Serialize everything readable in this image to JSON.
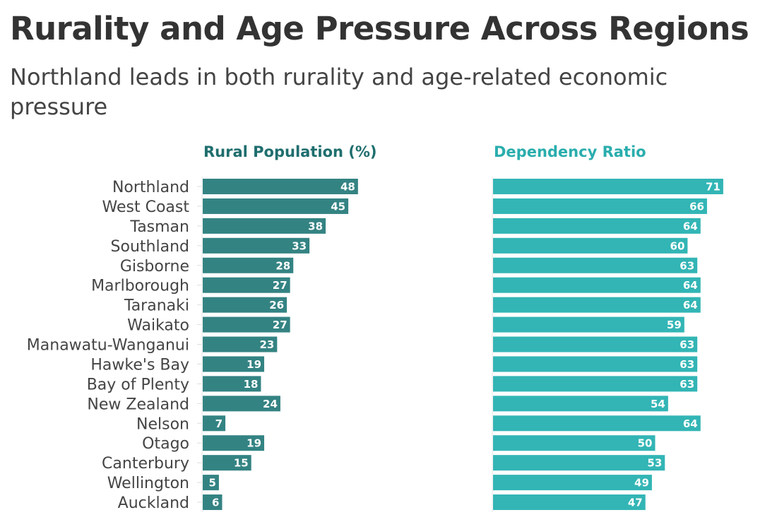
{
  "title": "Rurality and Age Pressure Across Regions",
  "subtitle": "Northland leads in both rurality and age-related economic pressure",
  "chart_data": [
    {
      "type": "bar",
      "orientation": "horizontal",
      "title": "Rural Population (%)",
      "color": "#348383",
      "title_color": "#1f6e6e",
      "categories": [
        "Northland",
        "West Coast",
        "Tasman",
        "Southland",
        "Gisborne",
        "Marlborough",
        "Taranaki",
        "Waikato",
        "Manawatu-Wanganui",
        "Hawke's Bay",
        "Bay of Plenty",
        "New Zealand",
        "Nelson",
        "Otago",
        "Canterbury",
        "Wellington",
        "Auckland"
      ],
      "values": [
        48,
        45,
        38,
        33,
        28,
        27,
        26,
        27,
        23,
        19,
        18,
        24,
        7,
        19,
        15,
        5,
        6
      ],
      "data_labels": true,
      "grid": false
    },
    {
      "type": "bar",
      "orientation": "horizontal",
      "title": "Dependency Ratio",
      "color": "#33b5b5",
      "title_color": "#2aadad",
      "categories": [
        "Northland",
        "West Coast",
        "Tasman",
        "Southland",
        "Gisborne",
        "Marlborough",
        "Taranaki",
        "Waikato",
        "Manawatu-Wanganui",
        "Hawke's Bay",
        "Bay of Plenty",
        "New Zealand",
        "Nelson",
        "Otago",
        "Canterbury",
        "Wellington",
        "Auckland"
      ],
      "values": [
        71,
        66,
        64,
        60,
        63,
        64,
        64,
        59,
        63,
        63,
        63,
        54,
        64,
        50,
        53,
        49,
        47
      ],
      "data_labels": true,
      "grid": false
    }
  ]
}
